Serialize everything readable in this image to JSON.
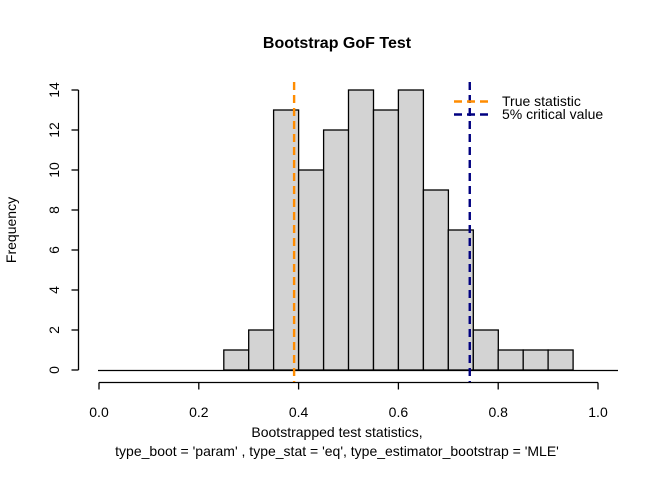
{
  "window": {
    "background": "#ffffff"
  },
  "chart_data": {
    "type": "bar",
    "subtype": "histogram",
    "title": "Bootstrap GoF Test",
    "xlabel_line1": "Bootstrapped test statistics,",
    "xlabel_line2": "type_boot = 'param' , type_stat = 'eq', type_estimator_bootstrap = 'MLE'",
    "ylabel": "Frequency",
    "xlim": [
      0.0,
      1.0
    ],
    "ylim": [
      0,
      14
    ],
    "grid": false,
    "bin_start": 0.25,
    "bin_width": 0.05,
    "bin_edges": [
      0.25,
      0.3,
      0.35,
      0.4,
      0.45,
      0.5,
      0.55,
      0.6,
      0.65,
      0.7,
      0.75,
      0.8,
      0.85,
      0.9,
      0.95
    ],
    "counts": [
      1,
      2,
      13,
      10,
      12,
      14,
      13,
      14,
      9,
      7,
      2,
      1,
      1,
      1
    ],
    "total_count": 100,
    "bar_fill": "#D3D3D3",
    "bar_stroke": "#000000",
    "xticks": [
      "0.0",
      "0.2",
      "0.4",
      "0.6",
      "0.8",
      "1.0"
    ],
    "xtick_values": [
      0.0,
      0.2,
      0.4,
      0.6,
      0.8,
      1.0
    ],
    "yticks": [
      "0",
      "2",
      "4",
      "6",
      "8",
      "10",
      "12",
      "14"
    ],
    "ytick_values": [
      0,
      2,
      4,
      6,
      8,
      10,
      12,
      14
    ],
    "legend_position": "top-right",
    "vlines": [
      {
        "label": "True statistic",
        "value": 0.391,
        "color": "#FF8C00",
        "style": "dashed",
        "width": 2
      },
      {
        "label": "5% critical value",
        "value": 0.743,
        "color": "#000080",
        "style": "dashed",
        "width": 2
      }
    ]
  }
}
